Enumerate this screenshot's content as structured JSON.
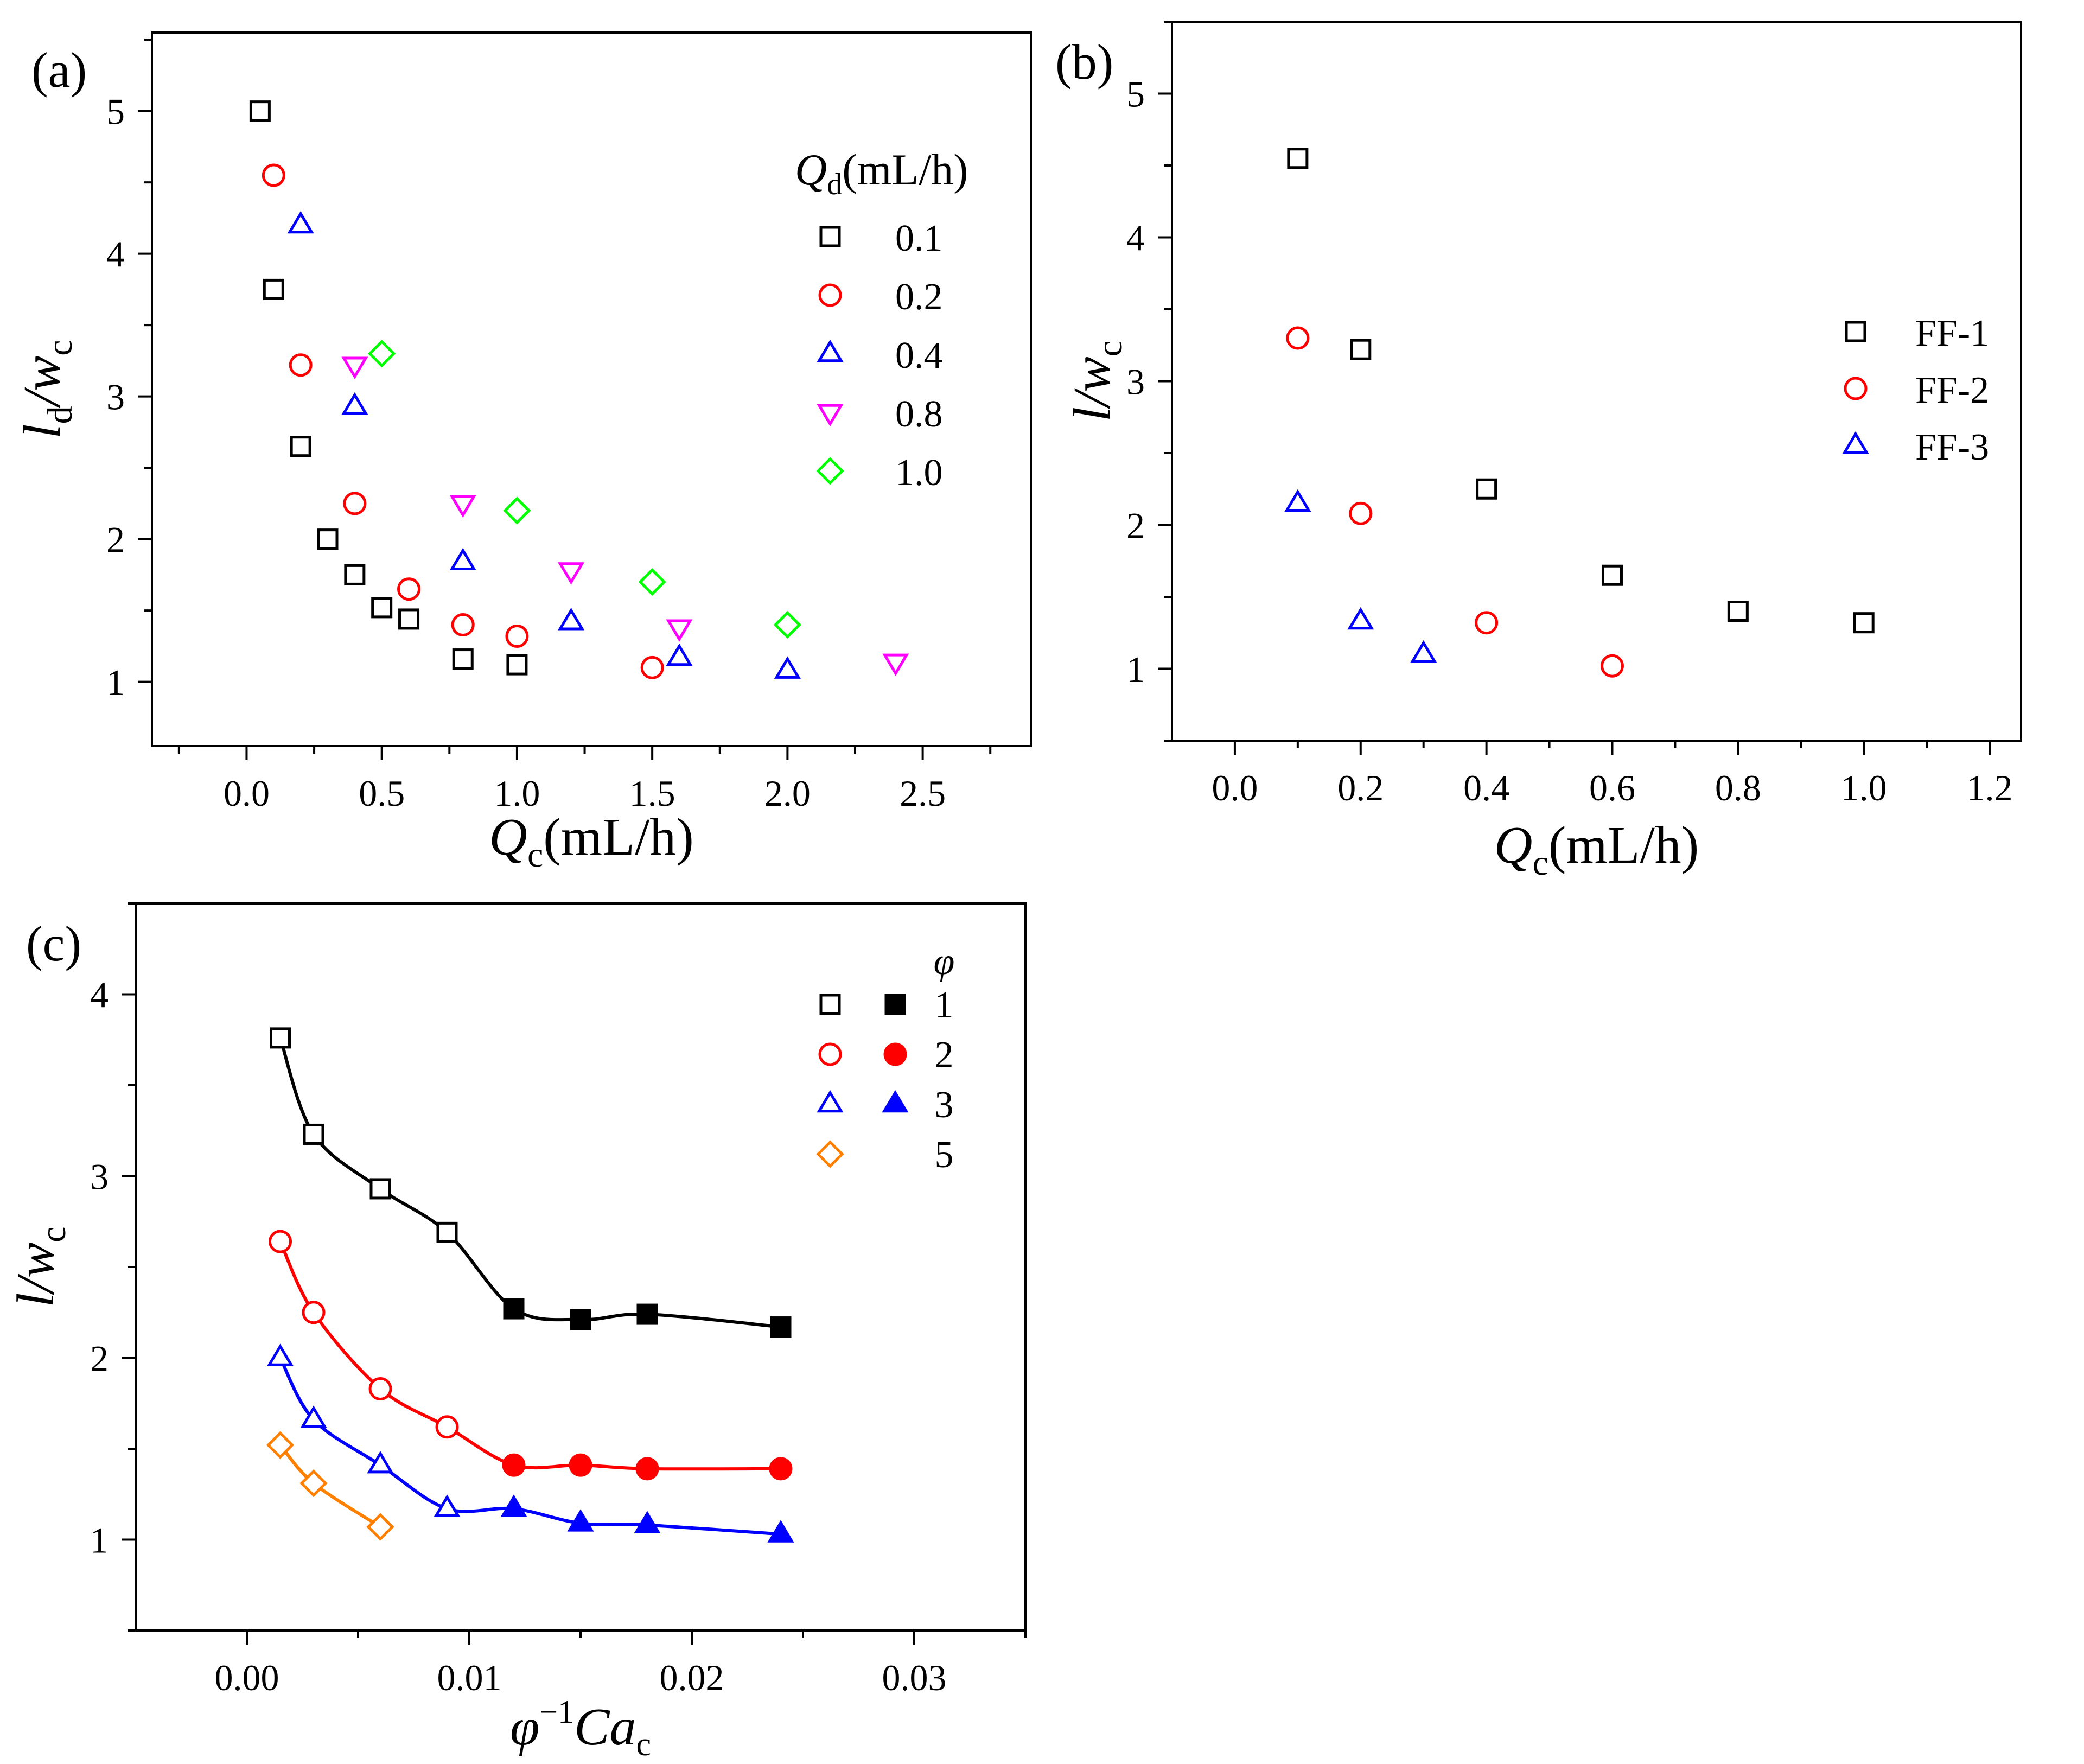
{
  "chart_data": [
    {
      "id": "a",
      "type": "scatter",
      "panel_label": "(a)",
      "xlabel": {
        "main": "Q",
        "sub": "c",
        "rest": "(mL/h)"
      },
      "ylabel": {
        "main": "l",
        "sub1": "d",
        "slash": "/w",
        "sub2": "c"
      },
      "xlim": [
        -0.35,
        2.9
      ],
      "ylim": [
        0.55,
        5.55
      ],
      "xticks": [
        "0.0",
        "0.5",
        "1.0",
        "1.5",
        "2.0",
        "2.5"
      ],
      "xtick_values": [
        0,
        0.5,
        1.0,
        1.5,
        2.0,
        2.5
      ],
      "yticks": [
        "1",
        "2",
        "3",
        "4",
        "5"
      ],
      "ytick_values": [
        1,
        2,
        3,
        4,
        5
      ],
      "legend_title": {
        "main": "Q",
        "sub": "d",
        "rest": "(mL/h)"
      },
      "legend_placement": "right",
      "series": [
        {
          "name": "0.1",
          "marker": "square",
          "color": "#000000",
          "filled": false,
          "x": [
            0.05,
            0.1,
            0.2,
            0.3,
            0.4,
            0.5,
            0.6,
            0.8,
            1.0
          ],
          "y": [
            5.0,
            3.75,
            2.65,
            2.0,
            1.75,
            1.52,
            1.44,
            1.16,
            1.12
          ]
        },
        {
          "name": "0.2",
          "marker": "circle",
          "color": "#ff0000",
          "filled": false,
          "x": [
            0.1,
            0.2,
            0.4,
            0.6,
            0.8,
            1.0,
            1.5
          ],
          "y": [
            4.55,
            3.22,
            2.25,
            1.65,
            1.4,
            1.32,
            1.1
          ]
        },
        {
          "name": "0.4",
          "marker": "triangle-up",
          "color": "#0000ff",
          "filled": false,
          "x": [
            0.2,
            0.4,
            0.8,
            1.2,
            1.6,
            2.0
          ],
          "y": [
            4.2,
            2.93,
            1.84,
            1.42,
            1.17,
            1.08
          ]
        },
        {
          "name": "0.8",
          "marker": "triangle-down",
          "color": "#ff00ff",
          "filled": false,
          "x": [
            0.4,
            0.8,
            1.2,
            1.6,
            2.4
          ],
          "y": [
            3.22,
            2.25,
            1.78,
            1.38,
            1.14
          ]
        },
        {
          "name": "1.0",
          "marker": "diamond",
          "color": "#00ff00",
          "filled": false,
          "x": [
            0.5,
            1.0,
            1.5,
            2.0
          ],
          "y": [
            3.3,
            2.2,
            1.7,
            1.4
          ]
        }
      ]
    },
    {
      "id": "b",
      "type": "scatter",
      "panel_label": "(b)",
      "xlabel": {
        "main": "Q",
        "sub": "c",
        "rest": "(mL/h)"
      },
      "ylabel": {
        "main": "l",
        "sub1": "",
        "slash": "/w",
        "sub2": "c"
      },
      "xlim": [
        -0.1,
        1.25
      ],
      "ylim": [
        0.5,
        5.5
      ],
      "xticks": [
        "0.0",
        "0.2",
        "0.4",
        "0.6",
        "0.8",
        "1.0",
        "1.2"
      ],
      "xtick_values": [
        0,
        0.2,
        0.4,
        0.6,
        0.8,
        1.0,
        1.2
      ],
      "yticks": [
        "1",
        "2",
        "3",
        "4",
        "5"
      ],
      "ytick_values": [
        1,
        2,
        3,
        4,
        5
      ],
      "legend_placement": "right",
      "series": [
        {
          "name": "FF-1",
          "marker": "square",
          "color": "#000000",
          "filled": false,
          "x": [
            0.1,
            0.2,
            0.4,
            0.6,
            0.8,
            1.0
          ],
          "y": [
            4.55,
            3.22,
            2.25,
            1.65,
            1.4,
            1.32
          ]
        },
        {
          "name": "FF-2",
          "marker": "circle",
          "color": "#ff0000",
          "filled": false,
          "x": [
            0.1,
            0.2,
            0.4,
            0.6
          ],
          "y": [
            3.3,
            2.08,
            1.32,
            1.02
          ]
        },
        {
          "name": "FF-3",
          "marker": "triangle-up",
          "color": "#0000ff",
          "filled": false,
          "x": [
            0.1,
            0.2,
            0.3
          ],
          "y": [
            2.15,
            1.33,
            1.1
          ]
        }
      ]
    },
    {
      "id": "c",
      "type": "scatter",
      "panel_label": "(c)",
      "xlabel": {
        "main": "φ",
        "sup": "−1",
        "it": "Ca",
        "sub": "c"
      },
      "ylabel": {
        "main": "l",
        "sub1": "",
        "slash": "/w",
        "sub2": "c"
      },
      "xlim": [
        -0.005,
        0.035
      ],
      "ylim": [
        0.5,
        4.5
      ],
      "xticks": [
        "0.00",
        "0.01",
        "0.02",
        "0.03"
      ],
      "xtick_values": [
        0,
        0.01,
        0.02,
        0.03
      ],
      "yticks": [
        "1",
        "2",
        "3",
        "4"
      ],
      "ytick_values": [
        1,
        2,
        3,
        4
      ],
      "legend_title": {
        "main": "φ"
      },
      "legend_placement": "top-right",
      "series": [
        {
          "name": "1",
          "marker": "square",
          "color": "#000000",
          "has_filled_legend": true,
          "open": {
            "x": [
              0.0015,
              0.003,
              0.006,
              0.009
            ],
            "y": [
              3.76,
              3.23,
              2.93,
              2.69
            ]
          },
          "filled": {
            "x": [
              0.012,
              0.015,
              0.018,
              0.024
            ],
            "y": [
              2.27,
              2.21,
              2.24,
              2.17
            ]
          },
          "curve": true
        },
        {
          "name": "2",
          "marker": "circle",
          "color": "#ff0000",
          "has_filled_legend": true,
          "open": {
            "x": [
              0.0015,
              0.003,
              0.006,
              0.009
            ],
            "y": [
              2.64,
              2.25,
              1.83,
              1.62
            ]
          },
          "filled": {
            "x": [
              0.012,
              0.015,
              0.018,
              0.024
            ],
            "y": [
              1.41,
              1.41,
              1.39,
              1.39
            ]
          },
          "curve": true
        },
        {
          "name": "3",
          "marker": "triangle-up",
          "color": "#0000ff",
          "has_filled_legend": true,
          "open": {
            "x": [
              0.0015,
              0.003,
              0.006,
              0.009
            ],
            "y": [
              2.0,
              1.66,
              1.41,
              1.17
            ]
          },
          "filled": {
            "x": [
              0.012,
              0.015,
              0.018,
              0.024
            ],
            "y": [
              1.17,
              1.09,
              1.08,
              1.03
            ]
          },
          "curve": true
        },
        {
          "name": "5",
          "marker": "diamond",
          "color": "#ff8000",
          "has_filled_legend": false,
          "open": {
            "x": [
              0.0015,
              0.003,
              0.006
            ],
            "y": [
              1.52,
              1.31,
              1.07
            ]
          },
          "filled": {
            "x": [],
            "y": []
          },
          "curve": true
        }
      ]
    }
  ]
}
